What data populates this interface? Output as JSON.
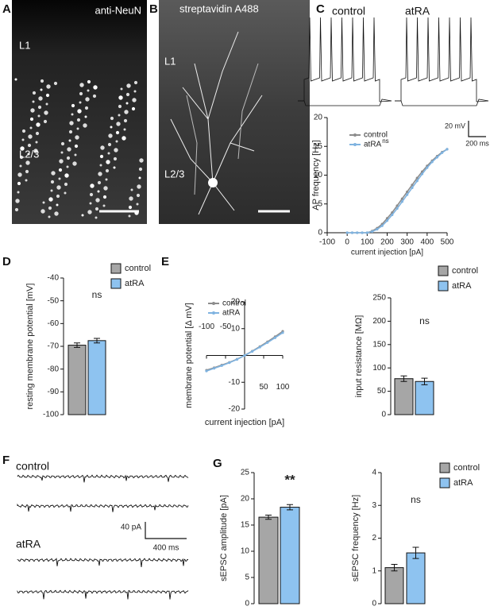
{
  "figure": {
    "panel_labels": [
      "A",
      "B",
      "C",
      "D",
      "E",
      "F",
      "G"
    ],
    "neun": {
      "stain": "anti-NeuN",
      "layers": [
        "L1",
        "L2/3"
      ]
    },
    "biocytin": {
      "stain": "streptavidin A488",
      "layers": [
        "L1",
        "L2/3"
      ]
    },
    "ap_traces": {
      "conditions": [
        "control",
        "atRA"
      ],
      "scale": [
        "20 mV",
        "200 ms"
      ]
    },
    "sepsc_traces": {
      "conditions": [
        "control",
        "atRA"
      ],
      "scale": [
        "40 pA",
        "400 ms"
      ]
    }
  },
  "chart_data": [
    {
      "type": "line",
      "xlabel": "current injection [pA]",
      "ylabel": "AP frequency [Hz]",
      "x": [
        0,
        25,
        50,
        75,
        100,
        125,
        150,
        175,
        200,
        225,
        250,
        275,
        300,
        325,
        350,
        375,
        400,
        425,
        450,
        475,
        500
      ],
      "series": [
        {
          "name": "control",
          "color": "#8c8c8c",
          "values": [
            0,
            0,
            0,
            0,
            0,
            0.3,
            0.8,
            1.5,
            2.5,
            3.5,
            4.7,
            5.9,
            7.1,
            8.3,
            9.5,
            10.6,
            11.6,
            12.5,
            13.3,
            14.0,
            14.5
          ]
        },
        {
          "name": "atRA",
          "color": "#7fb3e0",
          "values": [
            0,
            0,
            0,
            0,
            0,
            0.2,
            0.6,
            1.2,
            2.1,
            3.1,
            4.2,
            5.4,
            6.6,
            7.8,
            9.0,
            10.2,
            11.3,
            12.3,
            13.1,
            13.9,
            14.5
          ]
        }
      ],
      "annotation": "ns",
      "legend": true,
      "xlim": [
        -100,
        500
      ],
      "xticks": [
        -100,
        0,
        100,
        200,
        300,
        400,
        500
      ],
      "ylim": [
        0,
        20
      ],
      "yticks": [
        0,
        5,
        10,
        15,
        20
      ]
    },
    {
      "type": "bar",
      "ylabel": "resting membrane potential [mV]",
      "series": [
        {
          "name": "control",
          "color": "#a6a6a6",
          "values": [
            -69.5
          ],
          "errors": [
            1.0
          ]
        },
        {
          "name": "atRA",
          "color": "#8ec3f0",
          "values": [
            -67.5
          ],
          "errors": [
            1.0
          ]
        }
      ],
      "annotation": "ns",
      "legend": true,
      "ylim": [
        -100,
        -40
      ],
      "yticks": [
        -100,
        -90,
        -80,
        -70,
        -60,
        -50,
        -40
      ]
    },
    {
      "type": "iv",
      "xlabel": "current injection [pA]",
      "ylabel": "membrane potential [Δ mV]",
      "x": [
        -100,
        -80,
        -60,
        -40,
        -20,
        0,
        20,
        40,
        60,
        80,
        100
      ],
      "series": [
        {
          "name": "control",
          "color": "#8c8c8c",
          "values": [
            -5.5,
            -4.6,
            -3.6,
            -2.6,
            -1.4,
            0,
            1.6,
            3.3,
            5.1,
            7.0,
            9.0
          ]
        },
        {
          "name": "atRA",
          "color": "#7fb3e0",
          "values": [
            -5.8,
            -4.8,
            -3.8,
            -2.7,
            -1.5,
            0,
            1.5,
            3.1,
            4.8,
            6.6,
            8.5
          ]
        }
      ],
      "legend": true,
      "xlim": [
        -100,
        100
      ],
      "xticks": [
        -100,
        -50,
        50,
        100
      ],
      "ylim": [
        -20,
        20
      ],
      "yticks": [
        -20,
        -10,
        10,
        20
      ]
    },
    {
      "type": "bar",
      "ylabel": "input resistance [MΩ]",
      "series": [
        {
          "name": "control",
          "color": "#a6a6a6",
          "values": [
            77
          ],
          "errors": [
            6
          ]
        },
        {
          "name": "atRA",
          "color": "#8ec3f0",
          "values": [
            71
          ],
          "errors": [
            7
          ]
        }
      ],
      "annotation": "ns",
      "legend": true,
      "ylim": [
        0,
        250
      ],
      "yticks": [
        0,
        50,
        100,
        150,
        200,
        250
      ]
    },
    {
      "type": "bar",
      "ylabel": "sEPSC amplitude [pA]",
      "series": [
        {
          "name": "control",
          "color": "#a6a6a6",
          "values": [
            16.5
          ],
          "errors": [
            0.4
          ]
        },
        {
          "name": "atRA",
          "color": "#8ec3f0",
          "values": [
            18.4
          ],
          "errors": [
            0.5
          ]
        }
      ],
      "annotation": "**",
      "legend": false,
      "ylim": [
        0,
        25
      ],
      "yticks": [
        0,
        5,
        10,
        15,
        20,
        25
      ]
    },
    {
      "type": "bar",
      "ylabel": "sEPSC frequency [Hz]",
      "series": [
        {
          "name": "control",
          "color": "#a6a6a6",
          "values": [
            1.1
          ],
          "errors": [
            0.1
          ]
        },
        {
          "name": "atRA",
          "color": "#8ec3f0",
          "values": [
            1.55
          ],
          "errors": [
            0.17
          ]
        }
      ],
      "annotation": "ns",
      "legend": true,
      "ylim": [
        0,
        4
      ],
      "yticks": [
        0,
        1,
        2,
        3,
        4
      ]
    }
  ]
}
